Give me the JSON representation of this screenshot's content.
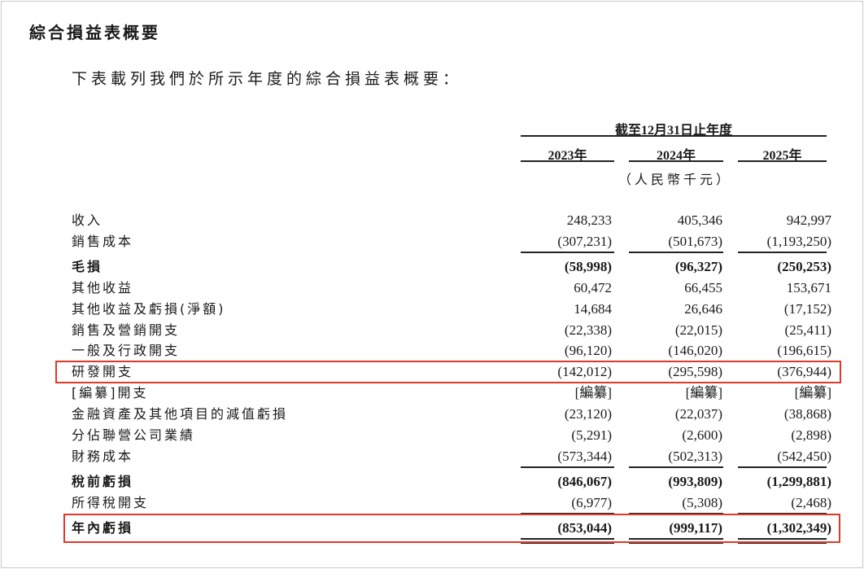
{
  "title": "綜合損益表概要",
  "intro": "下表載列我們於所示年度的綜合損益表概要：",
  "header": {
    "period": "截至12月31日止年度",
    "years": [
      "2023年",
      "2024年",
      "2025年"
    ],
    "unit": "（人民幣千元）"
  },
  "highlight_color": "#e0392b",
  "rows": [
    {
      "label": "收入",
      "values": [
        "248,233",
        "405,346",
        "942,997"
      ]
    },
    {
      "label": "銷售成本",
      "values": [
        "(307,231)",
        "(501,673)",
        "(1,193,250)"
      ]
    },
    {
      "label": "毛損",
      "values": [
        "(58,998)",
        "(96,327)",
        "(250,253)"
      ],
      "bold": true
    },
    {
      "label": "其他收益",
      "values": [
        "60,472",
        "66,455",
        "153,671"
      ]
    },
    {
      "label": "其他收益及虧損(淨額)",
      "values": [
        "14,684",
        "26,646",
        "(17,152)"
      ]
    },
    {
      "label": "銷售及營銷開支",
      "values": [
        "(22,338)",
        "(22,015)",
        "(25,411)"
      ]
    },
    {
      "label": "一般及行政開支",
      "values": [
        "(96,120)",
        "(146,020)",
        "(196,615)"
      ]
    },
    {
      "label": "研發開支",
      "values": [
        "(142,012)",
        "(295,598)",
        "(376,944)"
      ],
      "highlighted": true
    },
    {
      "label": "[編纂]開支",
      "values": [
        "[編纂]",
        "[編纂]",
        "[編纂]"
      ]
    },
    {
      "label": "金融資產及其他項目的減值虧損",
      "values": [
        "(23,120)",
        "(22,037)",
        "(38,868)"
      ]
    },
    {
      "label": "分佔聯營公司業績",
      "values": [
        "(5,291)",
        "(2,600)",
        "(2,898)"
      ]
    },
    {
      "label": "財務成本",
      "values": [
        "(573,344)",
        "(502,313)",
        "(542,450)"
      ]
    },
    {
      "label": "稅前虧損",
      "values": [
        "(846,067)",
        "(993,809)",
        "(1,299,881)"
      ],
      "bold": true
    },
    {
      "label": "所得稅開支",
      "values": [
        "(6,977)",
        "(5,308)",
        "(2,468)"
      ]
    },
    {
      "label": "年內虧損",
      "values": [
        "(853,044)",
        "(999,117)",
        "(1,302,349)"
      ],
      "bold": true,
      "highlighted": true
    }
  ]
}
